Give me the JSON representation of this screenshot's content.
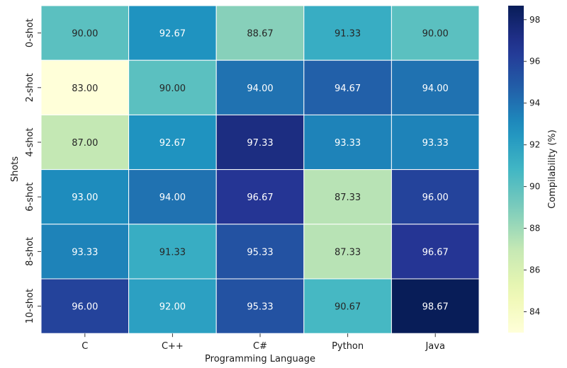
{
  "chart_data": {
    "type": "heatmap",
    "title": "",
    "xlabel": "Programming Language",
    "ylabel": "Shots",
    "x_categories": [
      "C",
      "C++",
      "C#",
      "Python",
      "Java"
    ],
    "y_categories": [
      "0-shot",
      "2-shot",
      "4-shot",
      "6-shot",
      "8-shot",
      "10-shot"
    ],
    "values": [
      [
        90.0,
        92.67,
        88.67,
        91.33,
        90.0
      ],
      [
        83.0,
        90.0,
        94.0,
        94.67,
        94.0
      ],
      [
        87.0,
        92.67,
        97.33,
        93.33,
        93.33
      ],
      [
        93.0,
        94.0,
        96.67,
        87.33,
        96.0
      ],
      [
        93.33,
        91.33,
        95.33,
        87.33,
        96.67
      ],
      [
        96.0,
        92.0,
        95.33,
        90.67,
        98.67
      ]
    ],
    "annotation_format": "2 decimals",
    "colormap": "YlGnBu",
    "color_range": [
      83.0,
      98.67
    ],
    "colorbar": {
      "label": "Compilability (%)",
      "ticks": [
        84,
        86,
        88,
        90,
        92,
        94,
        96,
        98
      ]
    }
  }
}
